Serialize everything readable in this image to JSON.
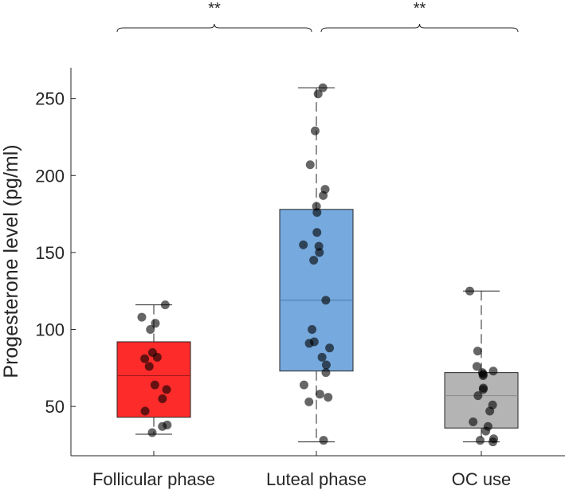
{
  "chart_data": {
    "type": "box",
    "ylabel": "Progesterone level (pg/ml)",
    "xlabel": "",
    "ylim": [
      18,
      270
    ],
    "yticks": [
      50,
      100,
      150,
      200,
      250
    ],
    "grid": false,
    "categories": [
      "Follicular phase",
      "Luteal phase",
      "OC use"
    ],
    "boxes": [
      {
        "name": "Follicular phase",
        "color": "#fe2b2b",
        "median_color": "#a01818",
        "min": 32,
        "q1": 43,
        "median": 70,
        "q3": 92,
        "max": 116,
        "points": [
          116,
          108,
          104,
          100,
          85,
          82,
          81,
          76,
          64,
          61,
          55,
          47,
          38,
          37,
          33
        ]
      },
      {
        "name": "Luteal phase",
        "color": "#76a9dd",
        "median_color": "#4d7ca8",
        "min": 27,
        "q1": 73,
        "median": 119,
        "q3": 178,
        "max": 257,
        "points": [
          257,
          253,
          229,
          207,
          191,
          187,
          180,
          176,
          163,
          155,
          154,
          150,
          145,
          119,
          100,
          92,
          91,
          88,
          82,
          77,
          72,
          64,
          58,
          56,
          53,
          28
        ]
      },
      {
        "name": "OC use",
        "color": "#b4b4b4",
        "median_color": "#8a8a8a",
        "min": 27,
        "q1": 36,
        "median": 57,
        "q3": 72,
        "max": 125,
        "points": [
          125,
          86,
          76,
          73,
          72,
          71,
          70,
          62,
          61,
          57,
          51,
          47,
          40,
          37,
          34,
          29,
          28,
          27
        ]
      }
    ],
    "annotations": [
      {
        "from": "Follicular phase",
        "to": "Luteal phase",
        "label": "**"
      },
      {
        "from": "Luteal phase",
        "to": "OC use",
        "label": "**"
      }
    ],
    "point_color": "#000000"
  }
}
